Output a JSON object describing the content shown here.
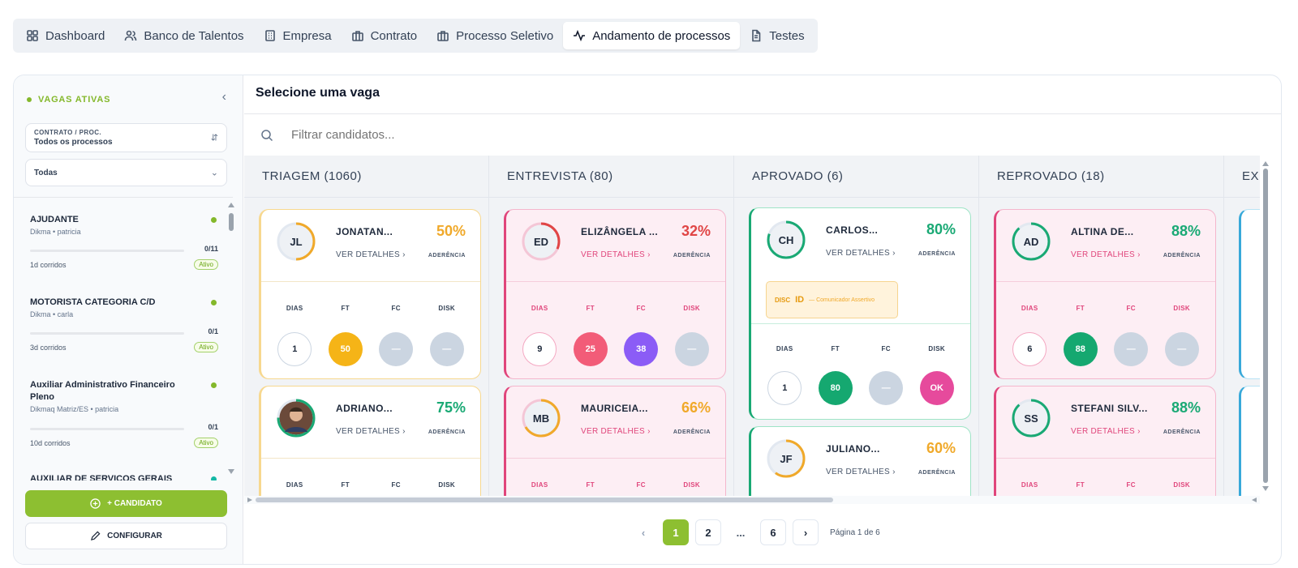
{
  "tabs": [
    {
      "label": "Dashboard",
      "icon": "grid-icon",
      "active": false
    },
    {
      "label": "Banco de Talentos",
      "icon": "users-icon",
      "active": false
    },
    {
      "label": "Empresa",
      "icon": "building-icon",
      "active": false
    },
    {
      "label": "Contrato",
      "icon": "briefcase-icon",
      "active": false
    },
    {
      "label": "Processo Seletivo",
      "icon": "briefcase-icon",
      "active": false
    },
    {
      "label": "Andamento de processos",
      "icon": "activity-icon",
      "active": true
    },
    {
      "label": "Testes",
      "icon": "file-icon",
      "active": false
    }
  ],
  "sidebar": {
    "header": "VAGAS ATIVAS",
    "filter_contract": {
      "label": "CONTRATO / PROC.",
      "value": "Todos os processos"
    },
    "filter_status": {
      "value": "Todas"
    },
    "vagas": [
      {
        "title": "AJUDANTE",
        "subtitle": "Dikma • patricia",
        "count": "0/11",
        "days": "1d corridos",
        "status": "Ativo"
      },
      {
        "title": "MOTORISTA CATEGORIA C/D",
        "subtitle": "Dikma • carla",
        "count": "0/1",
        "days": "3d corridos",
        "status": "Ativo"
      },
      {
        "title": "Auxiliar Administrativo Financeiro Pleno",
        "subtitle": "Dikmaq Matriz/ES • patricia",
        "count": "0/1",
        "days": "10d corridos",
        "status": "Ativo"
      },
      {
        "title": "AUXILIAR DE SERVIÇOS GERAIS",
        "subtitle": "",
        "count": "",
        "days": "",
        "status": ""
      }
    ],
    "add_button": "+ CANDIDATO",
    "config_button": "CONFIGURAR"
  },
  "main": {
    "title": "Selecione uma vaga",
    "search_placeholder": "Filtrar candidatos...",
    "metric_labels": [
      "DIAS",
      "FT",
      "FC",
      "DISK"
    ],
    "aderencia_label": "ADERÊNCIA",
    "details_label": "VER DETALHES ›",
    "columns": [
      {
        "title": "TRIAGEM (1060)",
        "color": "#f0a92a",
        "cards": [
          {
            "initials": "JL",
            "name": "JONATAN...",
            "pct": "50%",
            "metrics": [
              "1",
              "50",
              "—",
              "—"
            ]
          },
          {
            "initials": "",
            "name": "ADRIANO...",
            "pct": "75%",
            "metrics": []
          }
        ]
      },
      {
        "title": "ENTREVISTA (80)",
        "color": "#e0457b",
        "cards": [
          {
            "initials": "ED",
            "name": "ELIZÂNGELA ...",
            "pct": "32%",
            "metrics": [
              "9",
              "25",
              "38",
              "—"
            ]
          },
          {
            "initials": "MB",
            "name": "MAURICEIA...",
            "pct": "66%",
            "metrics": []
          }
        ]
      },
      {
        "title": "APROVADO (6)",
        "color": "#19a974",
        "cards": [
          {
            "initials": "CH",
            "name": "CARLOS...",
            "pct": "80%",
            "disc": {
              "tag": "DISC",
              "code": "ID",
              "text": "— Comunicador Assertivo"
            },
            "metrics": [
              "1",
              "80",
              "—",
              "OK"
            ]
          },
          {
            "initials": "JF",
            "name": "JULIANO...",
            "pct": "60%",
            "metrics": []
          }
        ]
      },
      {
        "title": "REPROVADO (18)",
        "color": "#e0457b",
        "cards": [
          {
            "initials": "AD",
            "name": "ALTINA DE...",
            "pct": "88%",
            "metrics": [
              "6",
              "88",
              "—",
              "—"
            ]
          },
          {
            "initials": "SS",
            "name": "STEFANI SILV...",
            "pct": "88%",
            "metrics": []
          }
        ]
      },
      {
        "title": "EX",
        "color": "#38a9d9",
        "cards": []
      }
    ]
  },
  "pagination": {
    "pages": [
      "1",
      "2",
      "...",
      "6"
    ],
    "active": "1",
    "info": "Página 1 de 6"
  }
}
